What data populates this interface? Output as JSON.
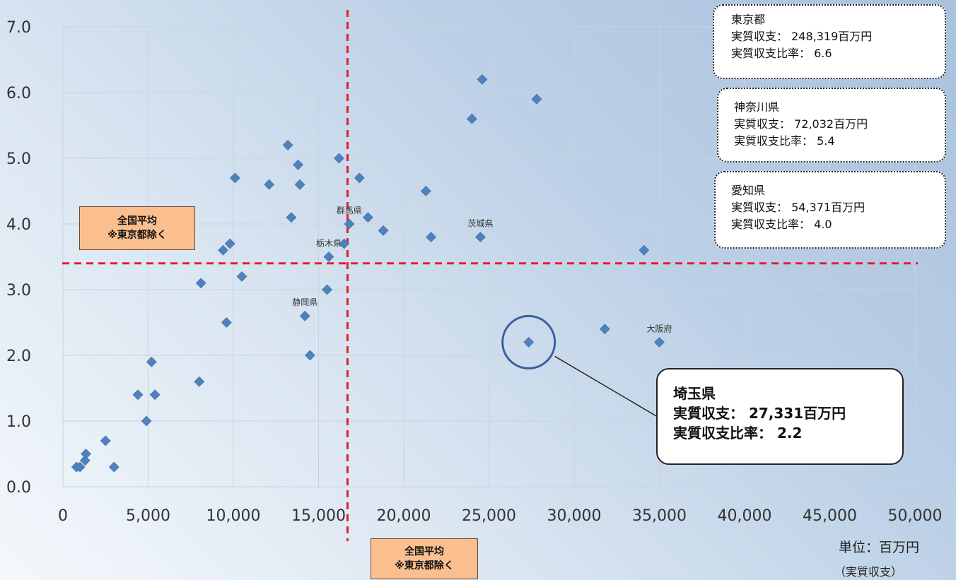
{
  "chart_data": {
    "type": "scatter",
    "xlim": [
      0,
      50000
    ],
    "ylim": [
      0,
      7
    ],
    "x_ticks": [
      "0",
      "5,000",
      "10,000",
      "15,000",
      "20,000",
      "25,000",
      "30,000",
      "35,000",
      "40,000",
      "45,000",
      "50,000"
    ],
    "y_ticks": [
      "0.0",
      "1.0",
      "2.0",
      "3.0",
      "4.0",
      "5.0",
      "6.0",
      "7.0"
    ],
    "grid": true,
    "marker_color": "#4f81bd",
    "points": [
      {
        "x": 800,
        "y": 0.3
      },
      {
        "x": 1000,
        "y": 0.3
      },
      {
        "x": 1300,
        "y": 0.4
      },
      {
        "x": 1350,
        "y": 0.5
      },
      {
        "x": 2500,
        "y": 0.7
      },
      {
        "x": 3000,
        "y": 0.3
      },
      {
        "x": 4400,
        "y": 1.4
      },
      {
        "x": 4900,
        "y": 1.0
      },
      {
        "x": 5200,
        "y": 1.9
      },
      {
        "x": 5400,
        "y": 1.4
      },
      {
        "x": 8000,
        "y": 1.6
      },
      {
        "x": 8100,
        "y": 3.1
      },
      {
        "x": 9400,
        "y": 3.6
      },
      {
        "x": 9600,
        "y": 2.5
      },
      {
        "x": 9800,
        "y": 3.7
      },
      {
        "x": 10100,
        "y": 4.7
      },
      {
        "x": 10500,
        "y": 3.2
      },
      {
        "x": 12100,
        "y": 4.6
      },
      {
        "x": 13200,
        "y": 5.2
      },
      {
        "x": 13400,
        "y": 4.1
      },
      {
        "x": 13800,
        "y": 4.9
      },
      {
        "x": 13900,
        "y": 4.6
      },
      {
        "x": 14200,
        "y": 2.6,
        "label": "静岡県"
      },
      {
        "x": 14500,
        "y": 2.0
      },
      {
        "x": 15500,
        "y": 3.0
      },
      {
        "x": 15600,
        "y": 3.5,
        "label": "栃木県"
      },
      {
        "x": 16200,
        "y": 5.0
      },
      {
        "x": 16500,
        "y": 3.7
      },
      {
        "x": 16800,
        "y": 4.0,
        "label": "群馬県"
      },
      {
        "x": 17400,
        "y": 4.7
      },
      {
        "x": 17900,
        "y": 4.1
      },
      {
        "x": 18800,
        "y": 3.9
      },
      {
        "x": 21300,
        "y": 4.5
      },
      {
        "x": 21600,
        "y": 3.8
      },
      {
        "x": 24000,
        "y": 5.6
      },
      {
        "x": 24500,
        "y": 3.8,
        "label": "茨城県"
      },
      {
        "x": 24600,
        "y": 6.2
      },
      {
        "x": 27331,
        "y": 2.2
      },
      {
        "x": 27800,
        "y": 5.9
      },
      {
        "x": 31800,
        "y": 2.4
      },
      {
        "x": 34100,
        "y": 3.6
      },
      {
        "x": 35000,
        "y": 2.2,
        "label": "大阪府"
      }
    ],
    "avg_x": 16700,
    "avg_y": 3.4,
    "avg_line_color": "#e2202c",
    "highlight": {
      "x": 27331,
      "y": 2.2,
      "color": "#3a5f9f"
    }
  },
  "avg_label_left": {
    "line1": "全国平均",
    "line2": "※東京都除く"
  },
  "avg_label_bottom": {
    "line1": "全国平均",
    "line2": "※東京都除く"
  },
  "callouts": {
    "tokyo": {
      "name": "東京都",
      "line1": "実質収支： 248,319百万円",
      "line2": "実質収支比率： 6.6"
    },
    "kanagawa": {
      "name": "神奈川県",
      "line1": "実質収支： 72,032百万円",
      "line2": "実質収支比率： 5.4"
    },
    "aichi": {
      "name": "愛知県",
      "line1": "実質収支： 54,371百万円",
      "line2": "実質収支比率： 4.0"
    }
  },
  "saitama": {
    "name": "埼玉県",
    "line1": "実質収支： 27,331百万円",
    "line2": "実質収支比率： 2.2"
  },
  "unit": {
    "label": "単位：百万円",
    "axis_note": "（実質収支）"
  }
}
